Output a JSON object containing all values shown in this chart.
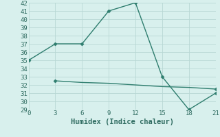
{
  "line1_x": [
    0,
    3,
    6,
    9,
    12,
    15,
    18,
    21
  ],
  "line1_y": [
    35,
    37,
    37,
    41,
    42,
    33,
    29,
    31
  ],
  "line2_x": [
    3,
    6,
    9,
    12,
    15,
    18,
    21
  ],
  "line2_y": [
    32.5,
    32.3,
    32.2,
    32.0,
    31.8,
    31.7,
    31.5
  ],
  "line_color": "#2e7d6e",
  "bg_color": "#d8f0ed",
  "grid_color": "#b8d8d4",
  "xlabel": "Humidex (Indice chaleur)",
  "xlim": [
    0,
    21
  ],
  "ylim": [
    29,
    42
  ],
  "xticks": [
    0,
    3,
    6,
    9,
    12,
    15,
    18,
    21
  ],
  "yticks": [
    29,
    30,
    31,
    32,
    33,
    34,
    35,
    36,
    37,
    38,
    39,
    40,
    41,
    42
  ],
  "marker": "D",
  "markersize": 2.5,
  "linewidth": 1.0,
  "font_color": "#2e6b60",
  "font_family": "monospace",
  "font_size": 6.5,
  "xlabel_fontsize": 7.5
}
